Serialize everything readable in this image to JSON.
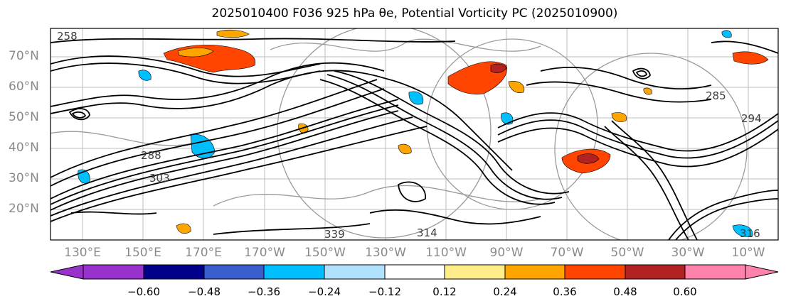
{
  "title": "2025010400 F036 925 hPa θe, Potential Vorticity PC (2025010900)",
  "lat_labels": [
    "70°N",
    "60°N",
    "50°N",
    "40°N",
    "30°N",
    "20°N"
  ],
  "lon_labels": [
    "130°E",
    "150°E",
    "170°E",
    "170°W",
    "150°W",
    "130°W",
    "110°W",
    "90°W",
    "70°W",
    "50°W",
    "30°W",
    "10°W"
  ],
  "contour_labels": [
    "258",
    "285",
    "294",
    "288",
    "303",
    "339",
    "314",
    "316"
  ],
  "colorbar": {
    "ticks": [
      "−0.60",
      "−0.48",
      "−0.36",
      "−0.24",
      "−0.12",
      "0.12",
      "0.24",
      "0.36",
      "0.48",
      "0.60"
    ],
    "colors": [
      "#9932CC",
      "#00008B",
      "#3A5FCD",
      "#00BFFF",
      "#B0E2FF",
      "#FFFFFF",
      "#FFEC8B",
      "#FFA500",
      "#FF4500",
      "#B22222",
      "#FF82AB"
    ]
  }
}
